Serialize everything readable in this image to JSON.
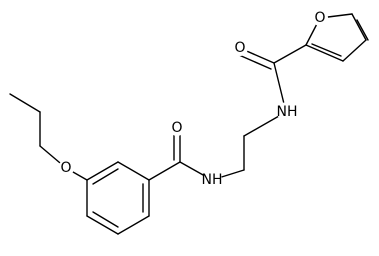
{
  "atoms": [
    {
      "label": "O"
    },
    {
      "label": "O"
    },
    {
      "label": "NH"
    },
    {
      "label": "O"
    },
    {
      "label": "NH"
    },
    {
      "label": "O"
    }
  ]
}
